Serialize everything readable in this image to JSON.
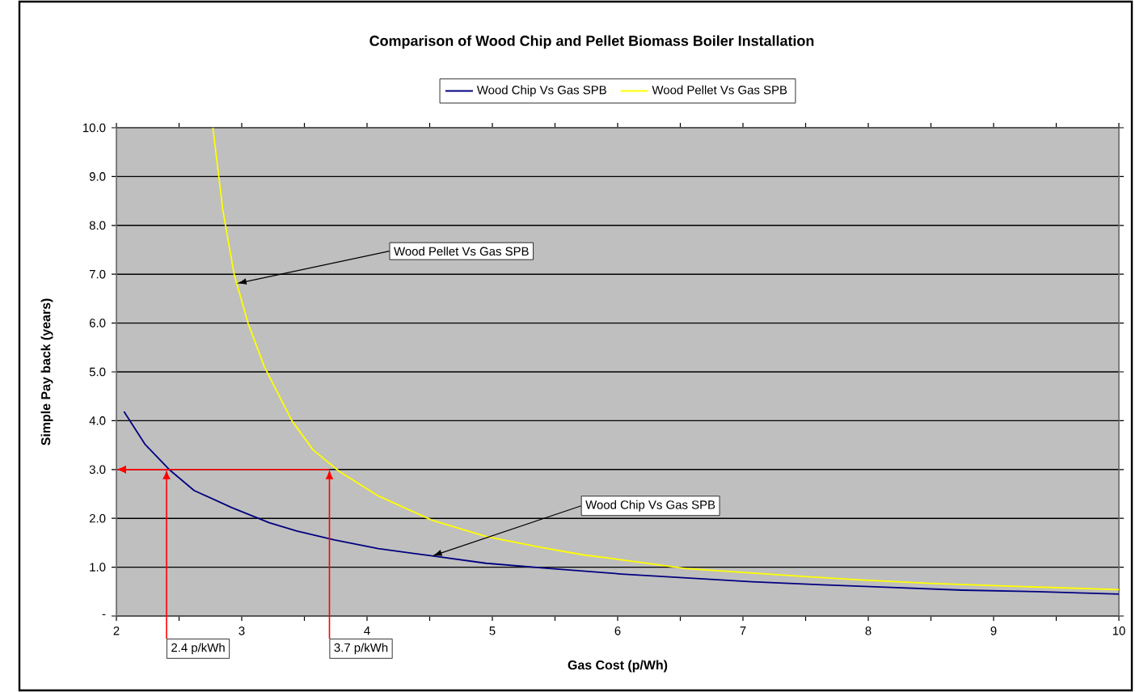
{
  "chart_data": {
    "type": "line",
    "title": "Comparison of Wood Chip and Pellet Biomass Boiler Installation",
    "xlabel": "Gas Cost (p/Wh)",
    "ylabel": "Simple Pay back (years)",
    "series": [
      {
        "name": "Wood Chip Vs Gas SPB",
        "color": "#000080",
        "x": [
          2.06,
          2.23,
          2.43,
          2.62,
          2.92,
          3.22,
          3.44,
          3.74,
          4.09,
          4.52,
          4.95,
          5.47,
          6.03,
          6.55,
          7.07,
          7.63,
          8.14,
          8.75,
          9.35,
          10.0
        ],
        "values": [
          4.19,
          3.51,
          2.98,
          2.57,
          2.22,
          1.91,
          1.74,
          1.56,
          1.38,
          1.23,
          1.08,
          0.97,
          0.86,
          0.78,
          0.7,
          0.64,
          0.59,
          0.53,
          0.5,
          0.45
        ]
      },
      {
        "name": "Wood Pellet Vs Gas SPB",
        "color": "#ffff00",
        "x": [
          2.77,
          2.85,
          2.94,
          3.05,
          3.18,
          3.4,
          3.57,
          3.78,
          4.09,
          4.52,
          4.95,
          5.38,
          5.73,
          5.92,
          6.55,
          7.2,
          7.85,
          8.49,
          9.14,
          10.0
        ],
        "values": [
          10.0,
          8.3,
          6.99,
          6.0,
          5.11,
          4.0,
          3.4,
          2.96,
          2.46,
          1.96,
          1.63,
          1.41,
          1.25,
          1.19,
          0.97,
          0.86,
          0.75,
          0.67,
          0.61,
          0.54
        ]
      }
    ],
    "annotations": [
      {
        "text": "Wood Pellet Vs Gas SPB",
        "x": 2.96,
        "y": 6.81
      },
      {
        "text": "Wood Chip Vs Gas SPB",
        "x": 4.52,
        "y": 1.23
      },
      {
        "text": "2.4 p/kWh",
        "x": 2.4,
        "y": 3
      },
      {
        "text": "3.7 p/kWh",
        "x": 3.7,
        "y": 3
      }
    ],
    "xlim": [
      2,
      10
    ],
    "ylim": [
      0,
      10
    ],
    "xticks": [
      2,
      {
        "value": 2.5,
        "label": null
      },
      3,
      {
        "value": 3.5,
        "label": null
      },
      4,
      {
        "value": 4.5,
        "label": null
      },
      5,
      {
        "value": 5.5,
        "label": null
      },
      6,
      {
        "value": 6.5,
        "label": null
      },
      7,
      {
        "value": 7.5,
        "label": null
      },
      8,
      {
        "value": 8.5,
        "label": null
      },
      9,
      {
        "value": 9.5,
        "label": null
      },
      10
    ],
    "yticks": [
      {
        "value": 0,
        "label": "-"
      },
      {
        "value": 1,
        "label": "1.0"
      },
      {
        "value": 2,
        "label": "2.0"
      },
      {
        "value": 3,
        "label": "3.0"
      },
      {
        "value": 4,
        "label": "4.0"
      },
      {
        "value": 5,
        "label": "5.0"
      },
      {
        "value": 6,
        "label": "6.0"
      },
      {
        "value": 7,
        "label": "7.0"
      },
      {
        "value": 8,
        "label": "8.0"
      },
      {
        "value": 9,
        "label": "9.0"
      },
      {
        "value": 10,
        "label": "10.0"
      }
    ],
    "grid": "y",
    "legend": "top",
    "marker": "none",
    "line_style": "solid"
  }
}
